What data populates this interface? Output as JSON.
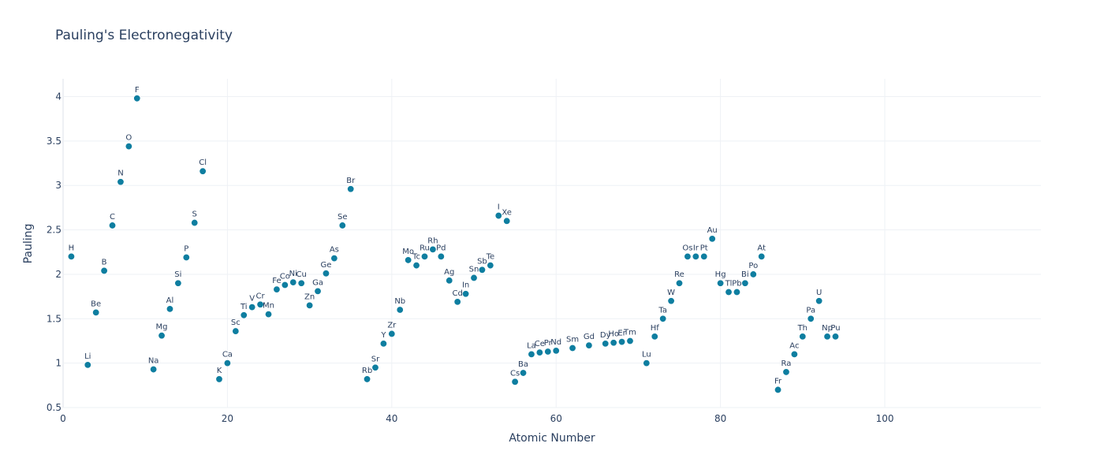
{
  "chart_data": {
    "type": "scatter",
    "title": "Pauling's Electronegativity",
    "xlabel": "Atomic Number",
    "ylabel": "Pauling",
    "xlim": [
      0,
      119
    ],
    "ylim": [
      0.5,
      4.2
    ],
    "xticks": [
      0,
      20,
      40,
      60,
      80,
      100
    ],
    "yticks": [
      0.5,
      1,
      1.5,
      2,
      2.5,
      3,
      3.5,
      4
    ],
    "ytick_labels": [
      "0.5",
      "1",
      "1.5",
      "2",
      "2.5",
      "3",
      "3.5",
      "4"
    ],
    "grid": true,
    "legend": "none",
    "marker_color": "#0e7ea0",
    "points": [
      {
        "label": "H",
        "x": 1,
        "y": 2.2
      },
      {
        "label": "Li",
        "x": 3,
        "y": 0.98
      },
      {
        "label": "Be",
        "x": 4,
        "y": 1.57
      },
      {
        "label": "B",
        "x": 5,
        "y": 2.04
      },
      {
        "label": "C",
        "x": 6,
        "y": 2.55
      },
      {
        "label": "N",
        "x": 7,
        "y": 3.04
      },
      {
        "label": "O",
        "x": 8,
        "y": 3.44
      },
      {
        "label": "F",
        "x": 9,
        "y": 3.98
      },
      {
        "label": "Na",
        "x": 11,
        "y": 0.93
      },
      {
        "label": "Mg",
        "x": 12,
        "y": 1.31
      },
      {
        "label": "Al",
        "x": 13,
        "y": 1.61
      },
      {
        "label": "Si",
        "x": 14,
        "y": 1.9
      },
      {
        "label": "P",
        "x": 15,
        "y": 2.19
      },
      {
        "label": "S",
        "x": 16,
        "y": 2.58
      },
      {
        "label": "Cl",
        "x": 17,
        "y": 3.16
      },
      {
        "label": "K",
        "x": 19,
        "y": 0.82
      },
      {
        "label": "Ca",
        "x": 20,
        "y": 1.0
      },
      {
        "label": "Sc",
        "x": 21,
        "y": 1.36
      },
      {
        "label": "Ti",
        "x": 22,
        "y": 1.54
      },
      {
        "label": "V",
        "x": 23,
        "y": 1.63
      },
      {
        "label": "Cr",
        "x": 24,
        "y": 1.66
      },
      {
        "label": "Mn",
        "x": 25,
        "y": 1.55
      },
      {
        "label": "Fe",
        "x": 26,
        "y": 1.83
      },
      {
        "label": "Co",
        "x": 27,
        "y": 1.88
      },
      {
        "label": "Ni",
        "x": 28,
        "y": 1.91
      },
      {
        "label": "Cu",
        "x": 29,
        "y": 1.9
      },
      {
        "label": "Zn",
        "x": 30,
        "y": 1.65
      },
      {
        "label": "Ga",
        "x": 31,
        "y": 1.81
      },
      {
        "label": "Ge",
        "x": 32,
        "y": 2.01
      },
      {
        "label": "As",
        "x": 33,
        "y": 2.18
      },
      {
        "label": "Se",
        "x": 34,
        "y": 2.55
      },
      {
        "label": "Br",
        "x": 35,
        "y": 2.96
      },
      {
        "label": "Rb",
        "x": 37,
        "y": 0.82
      },
      {
        "label": "Sr",
        "x": 38,
        "y": 0.95
      },
      {
        "label": "Y",
        "x": 39,
        "y": 1.22
      },
      {
        "label": "Zr",
        "x": 40,
        "y": 1.33
      },
      {
        "label": "Nb",
        "x": 41,
        "y": 1.6
      },
      {
        "label": "Mo",
        "x": 42,
        "y": 2.16
      },
      {
        "label": "Tc",
        "x": 43,
        "y": 2.1
      },
      {
        "label": "Ru",
        "x": 44,
        "y": 2.2
      },
      {
        "label": "Rh",
        "x": 45,
        "y": 2.28
      },
      {
        "label": "Pd",
        "x": 46,
        "y": 2.2
      },
      {
        "label": "Ag",
        "x": 47,
        "y": 1.93
      },
      {
        "label": "Cd",
        "x": 48,
        "y": 1.69
      },
      {
        "label": "In",
        "x": 49,
        "y": 1.78
      },
      {
        "label": "Sn",
        "x": 50,
        "y": 1.96
      },
      {
        "label": "Sb",
        "x": 51,
        "y": 2.05
      },
      {
        "label": "Te",
        "x": 52,
        "y": 2.1
      },
      {
        "label": "I",
        "x": 53,
        "y": 2.66
      },
      {
        "label": "Xe",
        "x": 54,
        "y": 2.6
      },
      {
        "label": "Cs",
        "x": 55,
        "y": 0.79
      },
      {
        "label": "Ba",
        "x": 56,
        "y": 0.89
      },
      {
        "label": "La",
        "x": 57,
        "y": 1.1
      },
      {
        "label": "Ce",
        "x": 58,
        "y": 1.12
      },
      {
        "label": "Pr",
        "x": 59,
        "y": 1.13
      },
      {
        "label": "Nd",
        "x": 60,
        "y": 1.14
      },
      {
        "label": "Sm",
        "x": 62,
        "y": 1.17
      },
      {
        "label": "Gd",
        "x": 64,
        "y": 1.2
      },
      {
        "label": "Dy",
        "x": 66,
        "y": 1.22
      },
      {
        "label": "Ho",
        "x": 67,
        "y": 1.23
      },
      {
        "label": "Er",
        "x": 68,
        "y": 1.24
      },
      {
        "label": "Tm",
        "x": 69,
        "y": 1.25
      },
      {
        "label": "Lu",
        "x": 71,
        "y": 1.0
      },
      {
        "label": "Hf",
        "x": 72,
        "y": 1.3
      },
      {
        "label": "Ta",
        "x": 73,
        "y": 1.5
      },
      {
        "label": "W",
        "x": 74,
        "y": 1.7
      },
      {
        "label": "Re",
        "x": 75,
        "y": 1.9
      },
      {
        "label": "Os",
        "x": 76,
        "y": 2.2
      },
      {
        "label": "Ir",
        "x": 77,
        "y": 2.2
      },
      {
        "label": "Pt",
        "x": 78,
        "y": 2.2
      },
      {
        "label": "Au",
        "x": 79,
        "y": 2.4
      },
      {
        "label": "Hg",
        "x": 80,
        "y": 1.9
      },
      {
        "label": "Tl",
        "x": 81,
        "y": 1.8
      },
      {
        "label": "Pb",
        "x": 82,
        "y": 1.8
      },
      {
        "label": "Bi",
        "x": 83,
        "y": 1.9
      },
      {
        "label": "Po",
        "x": 84,
        "y": 2.0
      },
      {
        "label": "At",
        "x": 85,
        "y": 2.2
      },
      {
        "label": "Fr",
        "x": 87,
        "y": 0.7
      },
      {
        "label": "Ra",
        "x": 88,
        "y": 0.9
      },
      {
        "label": "Ac",
        "x": 89,
        "y": 1.1
      },
      {
        "label": "Th",
        "x": 90,
        "y": 1.3
      },
      {
        "label": "Pa",
        "x": 91,
        "y": 1.5
      },
      {
        "label": "U",
        "x": 92,
        "y": 1.7
      },
      {
        "label": "Np",
        "x": 93,
        "y": 1.3
      },
      {
        "label": "Pu",
        "x": 94,
        "y": 1.3
      }
    ]
  }
}
